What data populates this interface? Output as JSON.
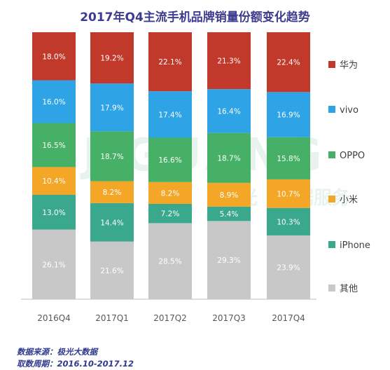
{
  "title": "2017年Q4主流手机品牌销量份额变化趋势",
  "source": {
    "line1": "数据来源：极光大数据",
    "line2": "取数周期：2016.10-2017.12"
  },
  "watermark": {
    "brand": "JIGUANG",
    "cn_left": "极光",
    "cn_right": "据服务"
  },
  "chart_data": {
    "type": "bar",
    "stacked": true,
    "percent": true,
    "title": "2017年Q4主流手机品牌销量份额变化趋势",
    "xlabel": "",
    "ylabel": "",
    "categories": [
      "2016Q4",
      "2017Q1",
      "2017Q2",
      "2017Q3",
      "2017Q4"
    ],
    "legend_position": "right",
    "series": [
      {
        "name": "其他",
        "color": "#c8c8c8",
        "values": [
          26.1,
          21.6,
          28.5,
          29.3,
          23.9
        ]
      },
      {
        "name": "iPhone",
        "color": "#3aa88d",
        "values": [
          13.0,
          14.4,
          7.2,
          5.4,
          10.3
        ]
      },
      {
        "name": "小米",
        "color": "#f4a626",
        "values": [
          10.4,
          8.2,
          8.2,
          8.9,
          10.7
        ]
      },
      {
        "name": "OPPO",
        "color": "#45b066",
        "values": [
          16.5,
          18.7,
          16.6,
          18.7,
          15.8
        ]
      },
      {
        "name": "vivo",
        "color": "#2ea3e6",
        "values": [
          16.0,
          17.9,
          17.4,
          16.4,
          16.9
        ]
      },
      {
        "name": "华为",
        "color": "#c0392b",
        "values": [
          18.0,
          19.2,
          22.1,
          21.3,
          22.4
        ]
      }
    ],
    "legend_order": [
      "华为",
      "vivo",
      "OPPO",
      "小米",
      "iPhone",
      "其他"
    ]
  }
}
